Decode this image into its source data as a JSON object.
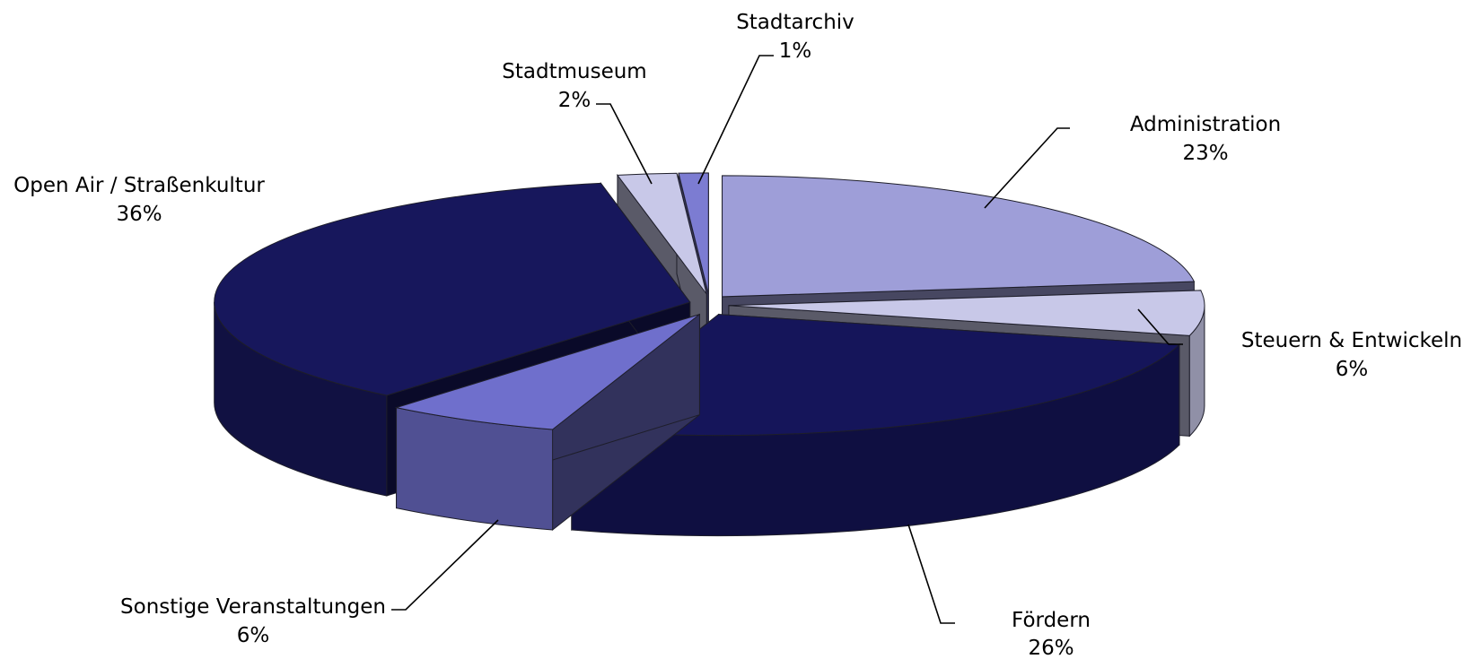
{
  "chart_data": {
    "type": "pie",
    "title": "",
    "slices": [
      {
        "label": "Administration",
        "percent_label": "23%",
        "value": 23,
        "color": "#9e9ed8",
        "key": "administration"
      },
      {
        "label": "Steuern & Entwickeln",
        "percent_label": "6%",
        "value": 6,
        "color": "#c8c8e8",
        "key": "steuern"
      },
      {
        "label": "Fördern",
        "percent_label": "26%",
        "value": 26,
        "color": "#15155a",
        "key": "foerdern"
      },
      {
        "label": "Sonstige Veranstaltungen",
        "percent_label": "6%",
        "value": 6,
        "color": "#6f6fcc",
        "key": "sonstige"
      },
      {
        "label": "Open Air / Straßenkultur",
        "percent_label": "36%",
        "value": 36,
        "color": "#17175c",
        "key": "openair"
      },
      {
        "label": "Stadtmuseum",
        "percent_label": "2%",
        "value": 2,
        "color": "#c8c8e8",
        "key": "stadtmuseum"
      },
      {
        "label": "Stadtarchiv",
        "percent_label": "1%",
        "value": 1,
        "color": "#7c7cd2",
        "key": "stadtarchiv"
      }
    ],
    "legend": "none",
    "style": "3d-exploded"
  }
}
